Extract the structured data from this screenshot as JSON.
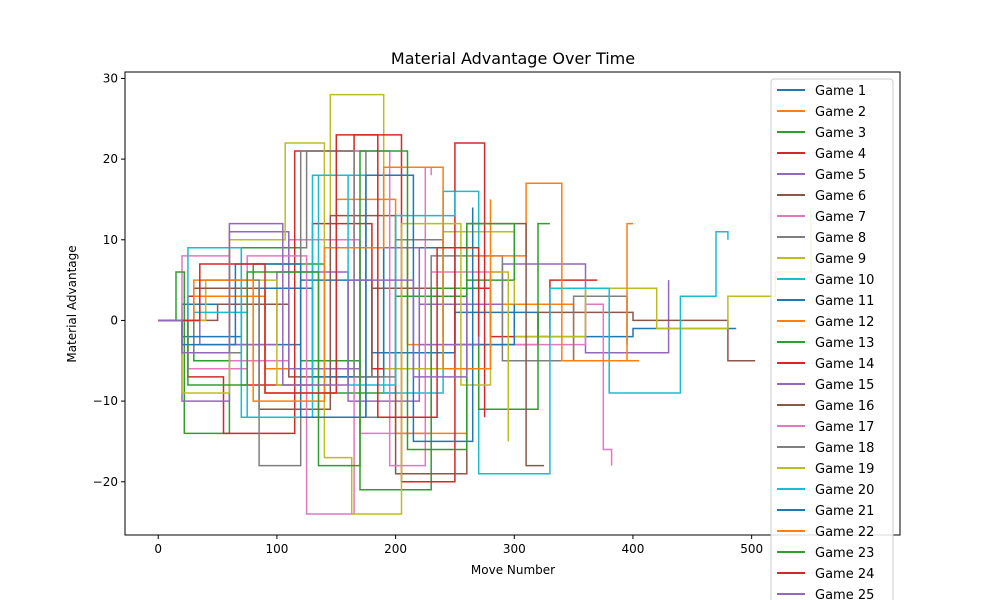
{
  "chart_data": {
    "type": "line",
    "title": "Material Advantage Over Time",
    "xlabel": "Move Number",
    "ylabel": "Material Advantage",
    "xlim": [
      -28,
      625
    ],
    "ylim": [
      -26.6,
      30.8
    ],
    "xticks": [
      0,
      100,
      200,
      300,
      400,
      500
    ],
    "yticks": [
      -20,
      -10,
      0,
      10,
      20,
      30
    ],
    "grid": false,
    "legend_position": "upper right",
    "series": [
      {
        "name": "Game 1",
        "color": "#1f77b4",
        "x": [
          0,
          20,
          60,
          120,
          180,
          250,
          320,
          400,
          480,
          487
        ],
        "y": [
          0,
          2,
          -3,
          5,
          -4,
          1,
          -2,
          -1,
          -1,
          -1
        ]
      },
      {
        "name": "Game 2",
        "color": "#ff7f0e",
        "x": [
          0,
          40,
          90,
          150,
          210,
          280,
          350,
          405
        ],
        "y": [
          0,
          4,
          -6,
          9,
          -3,
          2,
          -5,
          -5
        ]
      },
      {
        "name": "Game 3",
        "color": "#2ca02c",
        "x": [
          0,
          30,
          80,
          140,
          200,
          260,
          300
        ],
        "y": [
          0,
          -5,
          7,
          -9,
          3,
          5,
          5
        ]
      },
      {
        "name": "Game 4",
        "color": "#d62728",
        "x": [
          0,
          25,
          70,
          130,
          180,
          230,
          280,
          330,
          370
        ],
        "y": [
          0,
          3,
          -8,
          12,
          -6,
          4,
          -2,
          5,
          5
        ]
      },
      {
        "name": "Game 5",
        "color": "#9467bd",
        "x": [
          0,
          35,
          100,
          160,
          220,
          290,
          360,
          430
        ],
        "y": [
          0,
          -3,
          6,
          -10,
          2,
          7,
          -4,
          5
        ]
      },
      {
        "name": "Game 6",
        "color": "#8c564b",
        "x": [
          0,
          50,
          110,
          180,
          250,
          320,
          400,
          460,
          480,
          503
        ],
        "y": [
          0,
          2,
          -7,
          4,
          -3,
          1,
          0,
          0,
          -5,
          -5
        ]
      },
      {
        "name": "Game 7",
        "color": "#e377c2",
        "x": [
          0,
          20,
          60,
          110,
          170,
          230,
          290,
          360,
          375,
          382
        ],
        "y": [
          0,
          8,
          -5,
          10,
          -14,
          6,
          -3,
          2,
          -16,
          -18
        ]
      },
      {
        "name": "Game 8",
        "color": "#7f7f7f",
        "x": [
          0,
          30,
          70,
          125,
          175,
          230,
          290,
          350,
          395
        ],
        "y": [
          0,
          -4,
          9,
          21,
          -12,
          8,
          -5,
          3,
          -3
        ]
      },
      {
        "name": "Game 9",
        "color": "#bcbd22",
        "x": [
          0,
          40,
          100,
          145,
          190,
          240,
          300,
          360,
          420,
          480,
          520,
          550
        ],
        "y": [
          0,
          5,
          -8,
          28,
          -6,
          11,
          -2,
          4,
          -1,
          3,
          6,
          14
        ]
      },
      {
        "name": "Game 10",
        "color": "#17becf",
        "x": [
          0,
          30,
          75,
          135,
          190,
          240,
          270,
          330,
          380,
          440,
          470,
          480
        ],
        "y": [
          0,
          1,
          -12,
          18,
          -9,
          16,
          -19,
          4,
          -9,
          3,
          11,
          10
        ]
      },
      {
        "name": "Game 11",
        "color": "#1f77b4",
        "x": [
          0,
          20,
          70,
          130,
          190,
          250,
          300
        ],
        "y": [
          0,
          -2,
          4,
          -7,
          9,
          -3,
          2
        ]
      },
      {
        "name": "Game 12",
        "color": "#ff7f0e",
        "x": [
          0,
          30,
          90,
          150,
          200,
          260,
          310,
          340,
          395,
          400
        ],
        "y": [
          0,
          3,
          -9,
          15,
          -14,
          8,
          17,
          -5,
          12,
          12
        ]
      },
      {
        "name": "Game 13",
        "color": "#2ca02c",
        "x": [
          0,
          15,
          22,
          60,
          120,
          170,
          230,
          270,
          320,
          330
        ],
        "y": [
          0,
          6,
          -14,
          9,
          -5,
          -21,
          4,
          -11,
          12,
          12
        ]
      },
      {
        "name": "Game 14",
        "color": "#d62728",
        "x": [
          0,
          25,
          55,
          115,
          165,
          205,
          250,
          275
        ],
        "y": [
          0,
          -7,
          -14,
          21,
          23,
          -20,
          22,
          -12
        ]
      },
      {
        "name": "Game 15",
        "color": "#9467bd",
        "x": [
          0,
          20,
          60,
          110,
          170,
          220,
          270
        ],
        "y": [
          0,
          -10,
          11,
          -6,
          9,
          -3,
          2
        ]
      },
      {
        "name": "Game 16",
        "color": "#8c564b",
        "x": [
          0,
          30,
          85,
          145,
          200,
          260,
          310,
          325
        ],
        "y": [
          0,
          4,
          -11,
          13,
          -19,
          12,
          -18,
          -18
        ]
      },
      {
        "name": "Game 17",
        "color": "#e377c2",
        "x": [
          0,
          25,
          75,
          125,
          165,
          195,
          225,
          230
        ],
        "y": [
          0,
          -6,
          8,
          -24,
          21,
          -18,
          19,
          18
        ]
      },
      {
        "name": "Game 18",
        "color": "#7f7f7f",
        "x": [
          0,
          35,
          85,
          120,
          165,
          200,
          240
        ],
        "y": [
          0,
          5,
          -18,
          21,
          -7,
          10,
          -2
        ]
      },
      {
        "name": "Game 19",
        "color": "#bcbd22",
        "x": [
          0,
          20,
          60,
          107,
          140,
          163,
          205,
          255,
          280,
          295
        ],
        "y": [
          0,
          -9,
          10,
          22,
          -17,
          -24,
          12,
          -8,
          6,
          -15
        ]
      },
      {
        "name": "Game 20",
        "color": "#17becf",
        "x": [
          0,
          25,
          70,
          130,
          160,
          200,
          250
        ],
        "y": [
          0,
          9,
          -12,
          18,
          -8,
          13,
          16
        ]
      },
      {
        "name": "Game 21",
        "color": "#1f77b4",
        "x": [
          0,
          20,
          65,
          120,
          175,
          215,
          265
        ],
        "y": [
          0,
          -3,
          7,
          -12,
          18,
          -15,
          14
        ]
      },
      {
        "name": "Game 22",
        "color": "#ff7f0e",
        "x": [
          0,
          30,
          80,
          140,
          190,
          240,
          280
        ],
        "y": [
          0,
          5,
          -10,
          9,
          19,
          -6,
          15
        ]
      },
      {
        "name": "Game 23",
        "color": "#2ca02c",
        "x": [
          0,
          25,
          75,
          135,
          170,
          210,
          260,
          300
        ],
        "y": [
          0,
          -8,
          6,
          -18,
          21,
          -16,
          12,
          5
        ]
      },
      {
        "name": "Game 24",
        "color": "#d62728",
        "x": [
          0,
          35,
          90,
          150,
          185,
          235,
          270
        ],
        "y": [
          0,
          7,
          -9,
          23,
          -12,
          9,
          -2
        ]
      },
      {
        "name": "Game 25",
        "color": "#9467bd",
        "x": [
          0,
          20,
          60,
          105,
          160,
          215,
          260
        ],
        "y": [
          0,
          -4,
          12,
          -8,
          5,
          -7,
          3
        ]
      }
    ]
  }
}
